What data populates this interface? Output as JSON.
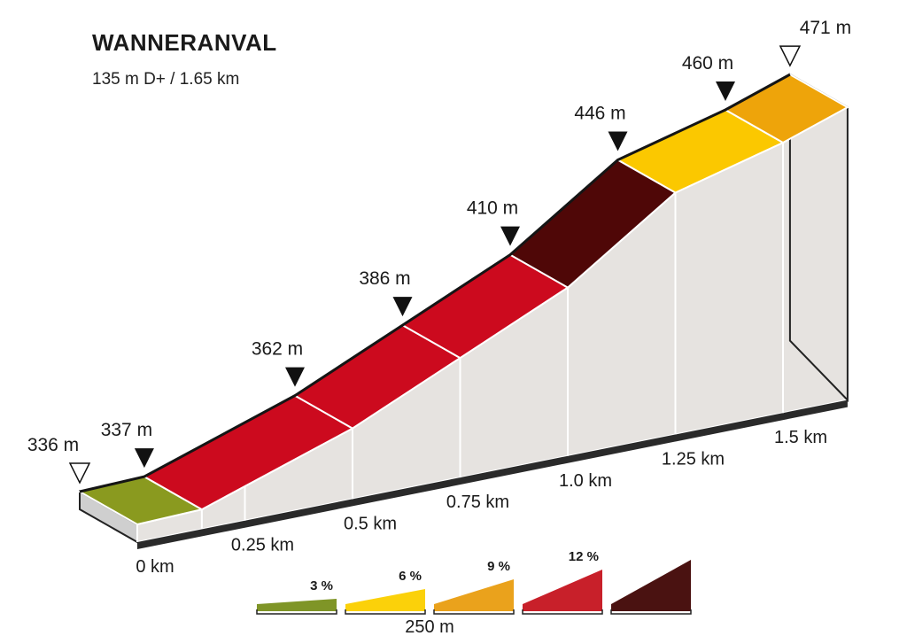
{
  "header": {
    "title": "WANNERANVAL",
    "subtitle": "135 m D+ / 1.65 km"
  },
  "chart_data": {
    "type": "area",
    "title": "WANNERANVAL",
    "subtitle": "135 m D+ / 1.65 km",
    "x_unit": "km",
    "y_unit": "m",
    "elevation_points": [
      {
        "km": 0.0,
        "label": "336 m",
        "elevation_m": 336,
        "marker": "start"
      },
      {
        "km": 0.15,
        "label": "337 m",
        "elevation_m": 337,
        "marker": "waypoint"
      },
      {
        "km": 0.5,
        "label": "362 m",
        "elevation_m": 362,
        "marker": "waypoint"
      },
      {
        "km": 0.75,
        "label": "386 m",
        "elevation_m": 386,
        "marker": "waypoint"
      },
      {
        "km": 1.0,
        "label": "410 m",
        "elevation_m": 410,
        "marker": "waypoint"
      },
      {
        "km": 1.25,
        "label": "446 m",
        "elevation_m": 446,
        "marker": "waypoint"
      },
      {
        "km": 1.5,
        "label": "460 m",
        "elevation_m": 460,
        "marker": "waypoint"
      },
      {
        "km": 1.65,
        "label": "471 m",
        "elevation_m": 471,
        "marker": "end"
      }
    ],
    "segments": [
      {
        "from_km": 0.0,
        "to_km": 0.15,
        "color": "#8a9a1f",
        "gradient_class": "3 %"
      },
      {
        "from_km": 0.15,
        "to_km": 0.5,
        "color": "#cc0a1e",
        "gradient_class": "9 %"
      },
      {
        "from_km": 0.5,
        "to_km": 0.75,
        "color": "#cc0a1e",
        "gradient_class": "9 %"
      },
      {
        "from_km": 0.75,
        "to_km": 1.0,
        "color": "#cc0a1e",
        "gradient_class": "9 %"
      },
      {
        "from_km": 1.0,
        "to_km": 1.25,
        "color": "#4f0707",
        "gradient_class": "12 %"
      },
      {
        "from_km": 1.25,
        "to_km": 1.5,
        "color": "#fbc800",
        "gradient_class": "6 %"
      },
      {
        "from_km": 1.5,
        "to_km": 1.65,
        "color": "#eea40a",
        "gradient_class": "6 %"
      }
    ],
    "x_ticks": [
      {
        "km": 0.0,
        "label": "0 km"
      },
      {
        "km": 0.25,
        "label": "0.25 km"
      },
      {
        "km": 0.5,
        "label": "0.5 km"
      },
      {
        "km": 0.75,
        "label": "0.75 km"
      },
      {
        "km": 1.0,
        "label": "1.0 km"
      },
      {
        "km": 1.25,
        "label": "1.25 km"
      },
      {
        "km": 1.5,
        "label": "1.5 km"
      }
    ],
    "legend": {
      "items": [
        {
          "label": "3 %",
          "color": "#7f9527"
        },
        {
          "label": "6 %",
          "color": "#fbd10a"
        },
        {
          "label": "9 %",
          "color": "#eaa21c"
        },
        {
          "label": "12 %",
          "color": "#c8202a"
        },
        {
          "label": "",
          "color": "#4a1211"
        }
      ],
      "scale_label": "250 m",
      "placement": "bottom-center"
    }
  }
}
